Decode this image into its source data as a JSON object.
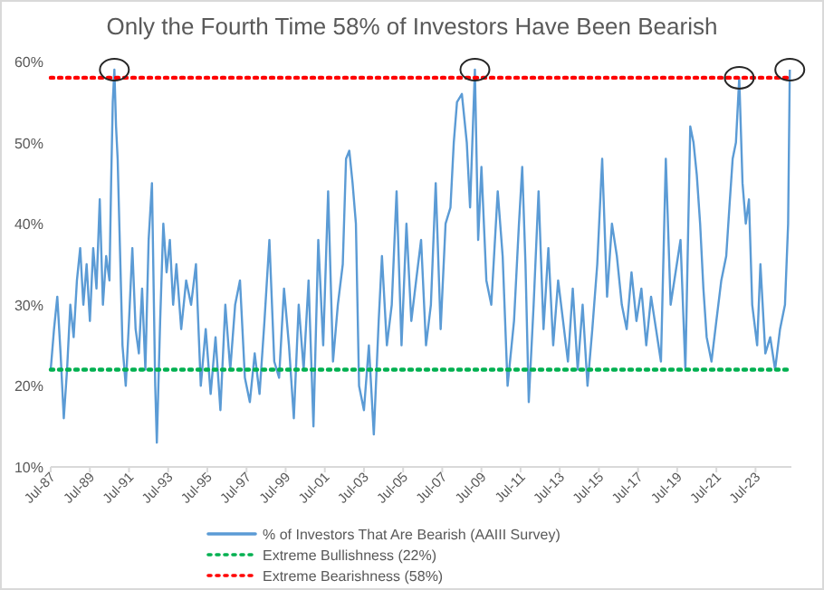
{
  "chart_data": {
    "type": "line",
    "title": "Only the Fourth Time 58% of Investors Have Been Bearish",
    "x": [
      "1987-07",
      "1987-09",
      "1987-11",
      "1988-01",
      "1988-03",
      "1988-05",
      "1988-07",
      "1988-09",
      "1988-11",
      "1989-01",
      "1989-03",
      "1989-05",
      "1989-07",
      "1989-09",
      "1989-11",
      "1990-01",
      "1990-03",
      "1990-05",
      "1990-07",
      "1990-08",
      "1990-09",
      "1990-10",
      "1990-11",
      "1990-12",
      "1991-01",
      "1991-03",
      "1991-05",
      "1991-07",
      "1991-09",
      "1991-11",
      "1992-01",
      "1992-03",
      "1992-05",
      "1992-07",
      "1992-09",
      "1992-11",
      "1992-12",
      "1993-02",
      "1993-04",
      "1993-06",
      "1993-08",
      "1993-10",
      "1993-12",
      "1994-03",
      "1994-06",
      "1994-09",
      "1994-12",
      "1995-03",
      "1995-06",
      "1995-09",
      "1995-12",
      "1996-03",
      "1996-06",
      "1996-09",
      "1996-12",
      "1997-03",
      "1997-06",
      "1997-09",
      "1997-12",
      "1998-03",
      "1998-06",
      "1998-09",
      "1998-12",
      "1999-03",
      "1999-06",
      "1999-09",
      "1999-12",
      "2000-03",
      "2000-06",
      "2000-09",
      "2000-12",
      "2001-03",
      "2001-06",
      "2001-09",
      "2001-12",
      "2002-03",
      "2002-06",
      "2002-08",
      "2002-10",
      "2002-12",
      "2003-02",
      "2003-04",
      "2003-07",
      "2003-10",
      "2004-01",
      "2004-04",
      "2004-06",
      "2004-09",
      "2004-12",
      "2005-03",
      "2005-06",
      "2005-09",
      "2005-12",
      "2006-03",
      "2006-06",
      "2006-09",
      "2006-12",
      "2007-03",
      "2007-06",
      "2007-09",
      "2007-12",
      "2008-02",
      "2008-04",
      "2008-07",
      "2008-10",
      "2008-12",
      "2009-03",
      "2009-05",
      "2009-07",
      "2009-10",
      "2010-01",
      "2010-05",
      "2010-08",
      "2010-11",
      "2011-03",
      "2011-06",
      "2011-08",
      "2011-10",
      "2011-12",
      "2012-03",
      "2012-06",
      "2012-09",
      "2012-12",
      "2013-03",
      "2013-06",
      "2013-09",
      "2013-12",
      "2014-03",
      "2014-06",
      "2014-09",
      "2014-12",
      "2015-03",
      "2015-06",
      "2015-09",
      "2015-12",
      "2016-03",
      "2016-06",
      "2016-09",
      "2016-12",
      "2017-03",
      "2017-06",
      "2017-09",
      "2017-12",
      "2018-03",
      "2018-06",
      "2018-09",
      "2018-12",
      "2019-03",
      "2019-06",
      "2019-09",
      "2019-12",
      "2020-03",
      "2020-05",
      "2020-07",
      "2020-09",
      "2020-11",
      "2021-01",
      "2021-04",
      "2021-07",
      "2021-10",
      "2022-01",
      "2022-03",
      "2022-05",
      "2022-07",
      "2022-09",
      "2022-11",
      "2023-01",
      "2023-03",
      "2023-05",
      "2023-08",
      "2023-10",
      "2024-01",
      "2024-04",
      "2024-07",
      "2024-10",
      "2025-01",
      "2025-03",
      "2025-04"
    ],
    "series": [
      {
        "name": "% of Investors That Are Bearish (AAIII Survey)",
        "color": "#5b9bd5",
        "values": [
          22,
          27,
          31,
          24,
          16,
          22,
          30,
          26,
          33,
          37,
          30,
          35,
          28,
          37,
          32,
          43,
          30,
          36,
          33,
          45,
          55,
          59,
          52,
          48,
          40,
          25,
          20,
          28,
          37,
          27,
          24,
          32,
          22,
          38,
          45,
          20,
          13,
          28,
          40,
          34,
          38,
          30,
          35,
          27,
          33,
          30,
          35,
          20,
          27,
          19,
          26,
          17,
          30,
          22,
          30,
          33,
          21,
          18,
          24,
          19,
          28,
          38,
          23,
          21,
          32,
          25,
          16,
          30,
          22,
          33,
          15,
          38,
          25,
          44,
          23,
          30,
          35,
          48,
          49,
          45,
          40,
          20,
          17,
          25,
          14,
          28,
          36,
          25,
          30,
          44,
          25,
          40,
          28,
          33,
          38,
          25,
          30,
          45,
          27,
          40,
          42,
          50,
          55,
          56,
          50,
          42,
          59,
          38,
          47,
          33,
          30,
          44,
          36,
          20,
          28,
          40,
          47,
          35,
          18,
          30,
          44,
          27,
          37,
          25,
          33,
          28,
          23,
          32,
          22,
          30,
          20,
          27,
          35,
          48,
          31,
          40,
          36,
          30,
          27,
          34,
          28,
          32,
          25,
          31,
          27,
          23,
          48,
          30,
          34,
          38,
          22,
          52,
          50,
          46,
          40,
          32,
          26,
          23,
          28,
          33,
          36,
          42,
          48,
          50,
          58,
          45,
          40,
          43,
          30,
          25,
          35,
          24,
          26,
          22,
          27,
          30,
          40,
          59
        ]
      }
    ],
    "xlim": [
      "1987-07",
      "2025-05"
    ],
    "xticks": [
      {
        "value": "1987-07",
        "label": "Jul-87"
      },
      {
        "value": "1989-07",
        "label": "Jul-89"
      },
      {
        "value": "1991-07",
        "label": "Jul-91"
      },
      {
        "value": "1993-07",
        "label": "Jul-93"
      },
      {
        "value": "1995-07",
        "label": "Jul-95"
      },
      {
        "value": "1997-07",
        "label": "Jul-97"
      },
      {
        "value": "1999-07",
        "label": "Jul-99"
      },
      {
        "value": "2001-07",
        "label": "Jul-01"
      },
      {
        "value": "2003-07",
        "label": "Jul-03"
      },
      {
        "value": "2005-07",
        "label": "Jul-05"
      },
      {
        "value": "2007-07",
        "label": "Jul-07"
      },
      {
        "value": "2009-07",
        "label": "Jul-09"
      },
      {
        "value": "2011-07",
        "label": "Jul-11"
      },
      {
        "value": "2013-07",
        "label": "Jul-13"
      },
      {
        "value": "2015-07",
        "label": "Jul-15"
      },
      {
        "value": "2017-07",
        "label": "Jul-17"
      },
      {
        "value": "2019-07",
        "label": "Jul-19"
      },
      {
        "value": "2021-07",
        "label": "Jul-21"
      },
      {
        "value": "2023-07",
        "label": "Jul-23"
      }
    ],
    "ylim": [
      10,
      60
    ],
    "yticks": [
      {
        "value": 10,
        "label": "10%"
      },
      {
        "value": 20,
        "label": "20%"
      },
      {
        "value": 30,
        "label": "30%"
      },
      {
        "value": 40,
        "label": "40%"
      },
      {
        "value": 50,
        "label": "50%"
      },
      {
        "value": 60,
        "label": "60%"
      }
    ],
    "ref_lines": [
      {
        "axis": "y",
        "value": 22,
        "label": "Extreme Bullishness (22%)",
        "color": "#00b050",
        "line_style": "dotted"
      },
      {
        "axis": "y",
        "value": 58,
        "label": "Extreme Bearishness (58%)",
        "color": "#ff0000",
        "line_style": "dotted"
      }
    ],
    "legend": "bottom",
    "grid": false,
    "marker": "none",
    "line_style": "solid"
  }
}
